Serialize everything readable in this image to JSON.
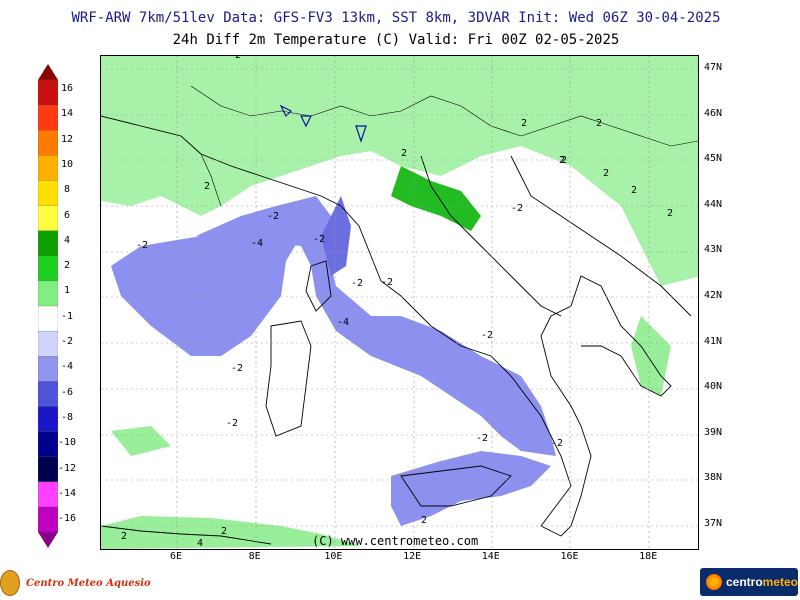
{
  "header": {
    "line1": "WRF-ARW 7km/51lev  Data: GFS-FV3 13km, SST 8km, 3DVAR  Init: Wed 06Z 30-04-2025",
    "line2": "24h Diff 2m Temperature (C)  Valid: Fri 00Z 02-05-2025"
  },
  "legend": {
    "labels": [
      "16",
      "14",
      "12",
      "10",
      "8",
      "6",
      "4",
      "2",
      "1",
      "-1",
      "-2",
      "-4",
      "-6",
      "-8",
      "-10",
      "-12",
      "-14",
      "-16"
    ],
    "colors": [
      "#8b0000",
      "#c81010",
      "#ff3a10",
      "#ff7a00",
      "#ffb000",
      "#ffe000",
      "#ffff40",
      "#0fa000",
      "#1fd020",
      "#80ee80",
      "#ffffff",
      "#d0d4ff",
      "#9094ee",
      "#5055d8",
      "#1818c8",
      "#00008c",
      "#000050",
      "#ff40ff",
      "#c000c0",
      "#8a008a"
    ]
  },
  "axes": {
    "lat": [
      "47N",
      "46N",
      "45N",
      "44N",
      "43N",
      "42N",
      "41N",
      "40N",
      "39N",
      "38N",
      "37N"
    ],
    "lon": [
      "6E",
      "8E",
      "10E",
      "12E",
      "14E",
      "16E",
      "18E"
    ]
  },
  "contours": [
    "-2",
    "2",
    "2",
    "2",
    "2",
    "2",
    "2",
    "2",
    "2",
    "2",
    "-2",
    "-2",
    "-4",
    "-2",
    "-4",
    "-2",
    "-2",
    "-2",
    "-2",
    "-2",
    "-2",
    "-2",
    "2",
    "-2",
    "2",
    "2",
    "4"
  ],
  "copyright": "(C) www.centrometeo.com",
  "logos": {
    "left": "Centro Meteo Aquesio",
    "right_a": "centro",
    "right_b": "meteo"
  }
}
